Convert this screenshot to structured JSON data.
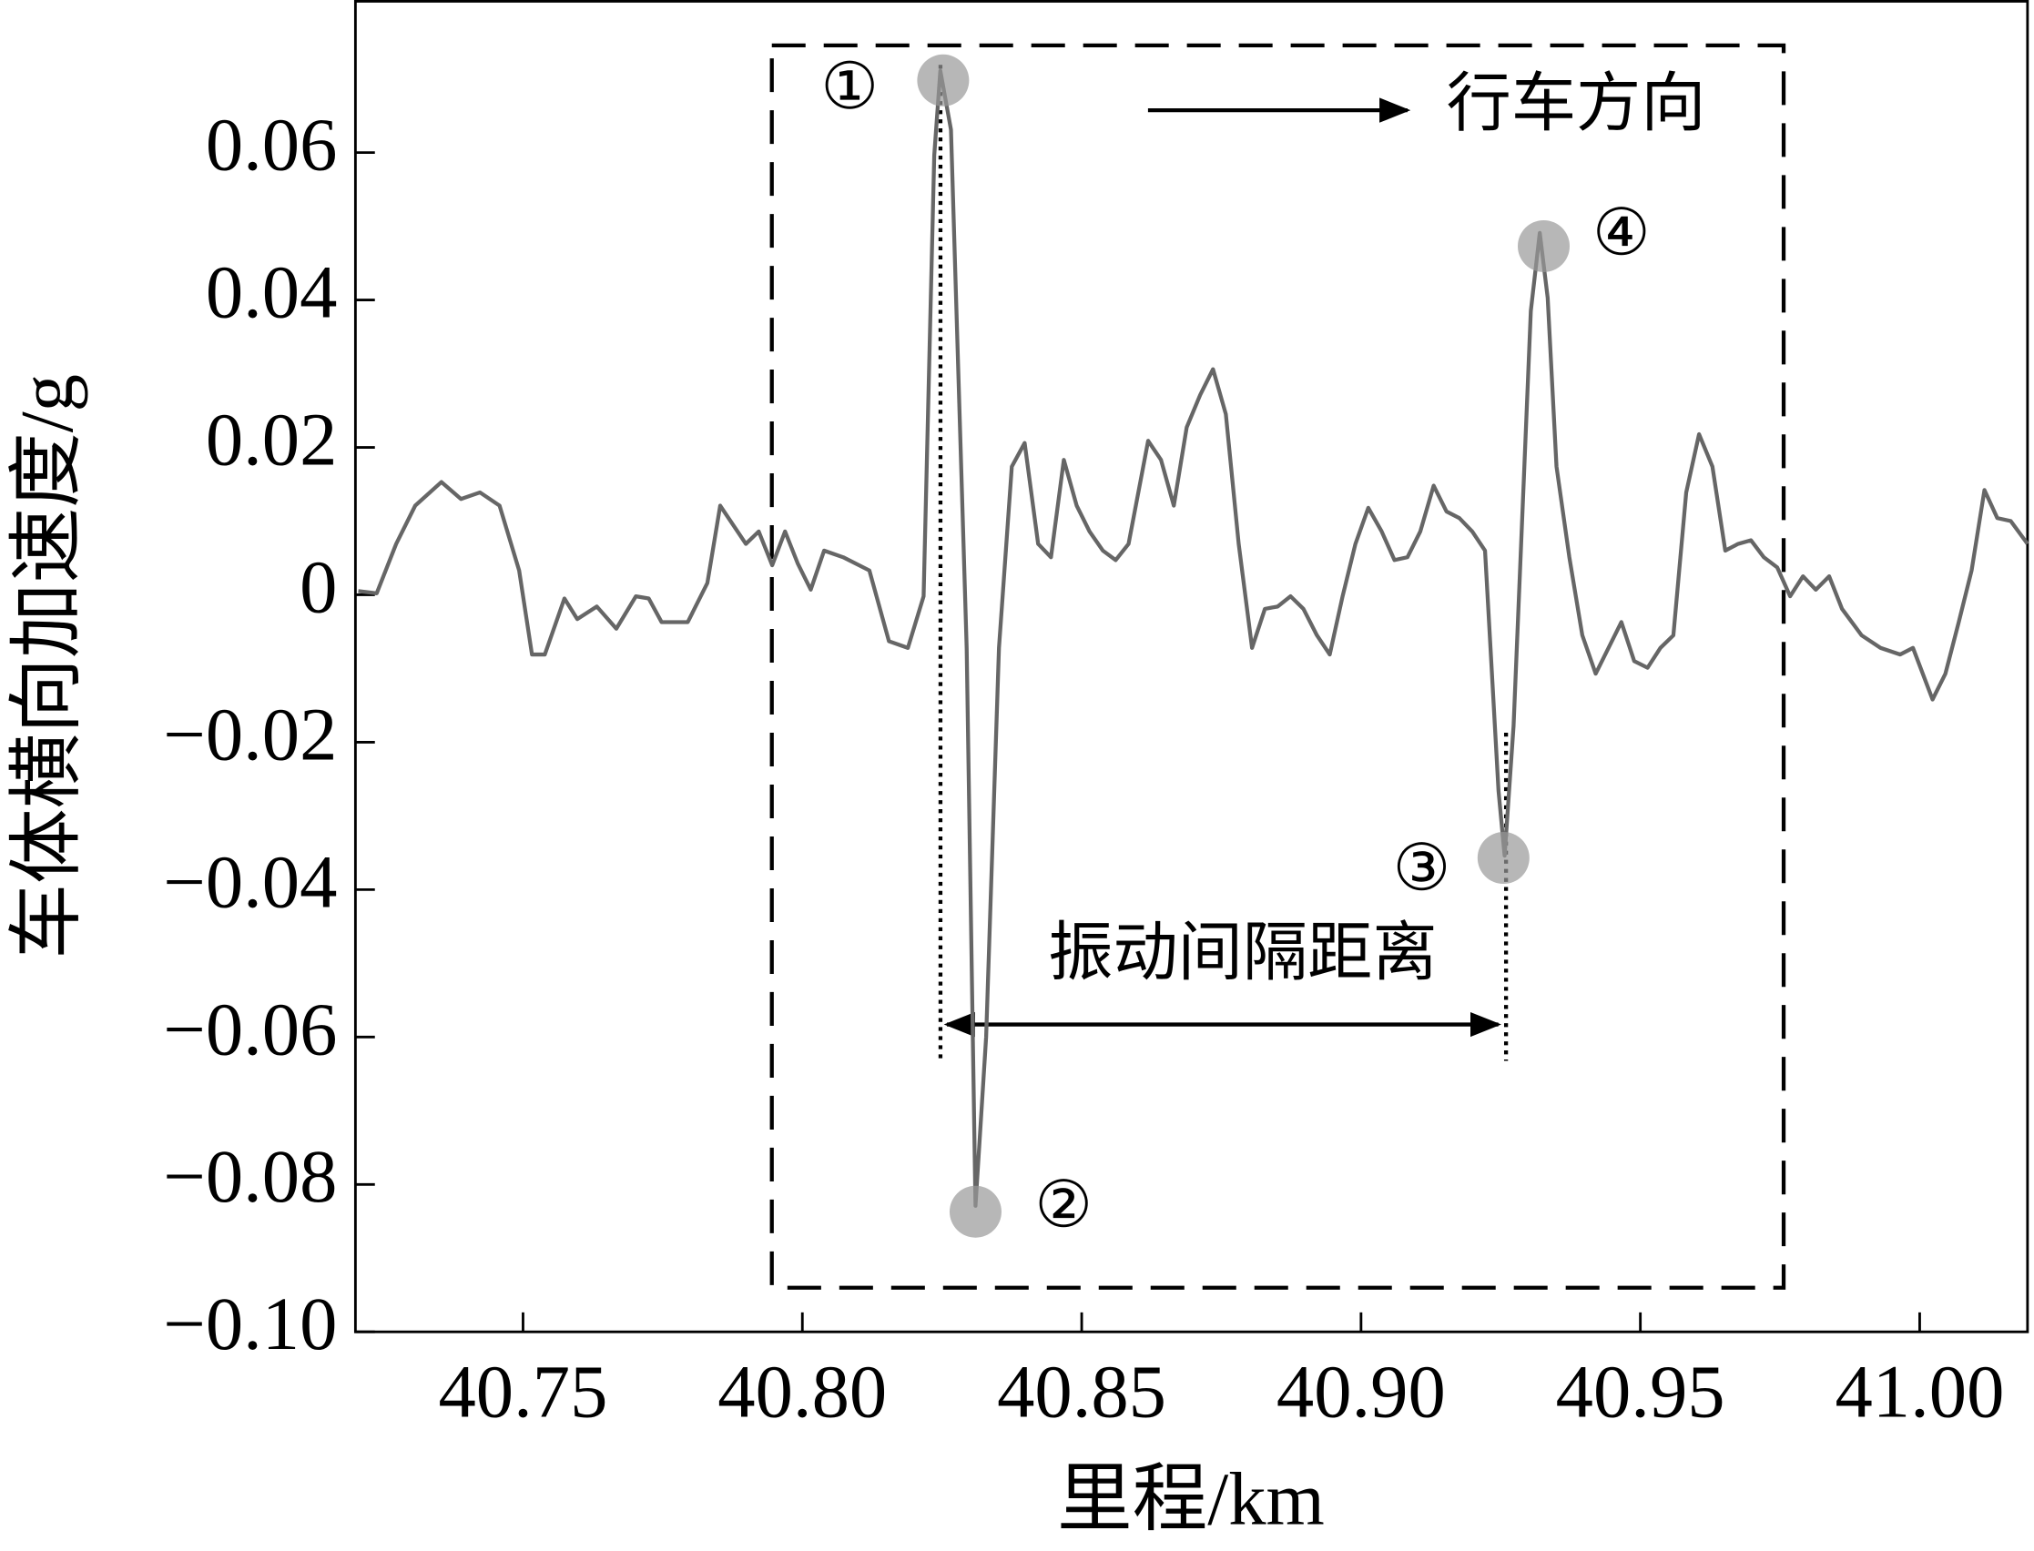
{
  "chart_data": {
    "type": "line",
    "xlabel": "里程/km",
    "ylabel": "车体横向加速度/g",
    "x": [
      40.7205,
      40.7238,
      40.7273,
      40.7307,
      40.7354,
      40.7389,
      40.7423,
      40.7458,
      40.7493,
      40.7516,
      40.7539,
      40.7574,
      40.7597,
      40.7632,
      40.7667,
      40.7702,
      40.7725,
      40.7748,
      40.7795,
      40.783,
      40.7853,
      40.7876,
      40.7899,
      40.7922,
      40.7946,
      40.7969,
      40.7992,
      40.8015,
      40.8039,
      40.8073,
      40.812,
      40.8155,
      40.8189,
      40.8217,
      40.8236,
      40.8247,
      40.8266,
      40.8294,
      40.831,
      40.8329,
      40.8352,
      40.8375,
      40.8398,
      40.8422,
      40.8445,
      40.8468,
      40.8491,
      40.8514,
      40.8538,
      40.8561,
      40.8584,
      40.8619,
      40.8642,
      40.8665,
      40.8688,
      40.8712,
      40.8735,
      40.8758,
      40.8781,
      40.8805,
      40.8828,
      40.8851,
      40.8874,
      40.8897,
      40.8921,
      40.8944,
      40.8967,
      40.899,
      40.9013,
      40.9037,
      40.906,
      40.9083,
      40.9106,
      40.913,
      40.9153,
      40.9176,
      40.9199,
      40.9222,
      40.9246,
      40.9257,
      40.9273,
      40.9304,
      40.932,
      40.9334,
      40.935,
      40.9373,
      40.9396,
      40.942,
      40.9443,
      40.9466,
      40.9489,
      40.9513,
      40.9536,
      40.9559,
      40.9582,
      40.9605,
      40.9629,
      40.9652,
      40.9675,
      40.9698,
      40.9721,
      40.9745,
      40.9768,
      40.9791,
      40.9814,
      40.9838,
      40.9861,
      40.9896,
      40.993,
      40.9965,
      40.9988,
      41.0023,
      41.0046,
      41.007,
      41.0093,
      41.0116,
      41.0139,
      41.0163,
      41.0193
    ],
    "values": [
      0.0005,
      0.0002,
      0.0069,
      0.0121,
      0.0153,
      0.013,
      0.0139,
      0.0121,
      0.0033,
      -0.0081,
      -0.0081,
      -0.0005,
      -0.0033,
      -0.0016,
      -0.0046,
      -0.0002,
      -0.0005,
      -0.0037,
      -0.0037,
      0.0016,
      0.0121,
      0.0095,
      0.0069,
      0.0086,
      0.004,
      0.0086,
      0.0042,
      0.0007,
      0.006,
      0.0051,
      0.0033,
      -0.0063,
      -0.0072,
      -0.0002,
      0.0596,
      0.0711,
      0.0631,
      -0.0072,
      -0.0829,
      -0.06,
      -0.0072,
      0.0174,
      0.0206,
      0.0069,
      0.0051,
      0.0183,
      0.0121,
      0.0086,
      0.006,
      0.0047,
      0.0069,
      0.0209,
      0.0183,
      0.0121,
      0.0227,
      0.0271,
      0.0306,
      0.0245,
      0.0069,
      -0.0072,
      -0.0019,
      -0.0016,
      -0.0002,
      -0.0019,
      -0.0055,
      -0.0081,
      -0.0002,
      0.0069,
      0.0118,
      0.0086,
      0.0047,
      0.0051,
      0.0086,
      0.0148,
      0.0113,
      0.0104,
      0.0086,
      0.006,
      -0.0266,
      -0.0354,
      -0.0178,
      0.0385,
      0.0491,
      0.0403,
      0.0174,
      0.0051,
      -0.0055,
      -0.0107,
      -0.0072,
      -0.0037,
      -0.009,
      -0.0099,
      -0.0072,
      -0.0055,
      0.0139,
      0.0218,
      0.0174,
      0.006,
      0.0069,
      0.0074,
      0.0051,
      0.0037,
      -0.0002,
      0.0025,
      0.0007,
      0.0025,
      -0.0019,
      -0.0055,
      -0.0072,
      -0.0081,
      -0.0072,
      -0.0142,
      -0.0107,
      -0.0037,
      0.0033,
      0.0142,
      0.0104,
      0.01,
      0.0069
    ],
    "color": "#666666",
    "xlim": [
      40.72,
      41.0193
    ],
    "ylim": [
      -0.1,
      0.0807
    ],
    "xticks": [
      40.75,
      {
        "value": 40.8,
        "label": "40.80"
      },
      40.85,
      {
        "value": 40.9,
        "label": "40.90"
      },
      40.95,
      {
        "value": 41.0,
        "label": "41.00"
      }
    ],
    "yticks": [
      {
        "value": -0.1,
        "label": "−0.10"
      },
      {
        "value": -0.08,
        "label": "−0.08"
      },
      {
        "value": -0.06,
        "label": "−0.06"
      },
      {
        "value": -0.04,
        "label": "−0.04"
      },
      {
        "value": -0.02,
        "label": "−0.02"
      },
      0,
      0.02,
      0.04,
      0.06
    ],
    "markers": [
      {
        "label": "①",
        "x": 40.8252,
        "y": 0.0698
      },
      {
        "label": "②",
        "x": 40.831,
        "y": -0.0837
      },
      {
        "label": "③",
        "x": 40.9255,
        "y": -0.0357
      },
      {
        "label": "④",
        "x": 40.9327,
        "y": 0.0473
      }
    ],
    "annotations": {
      "direction": "行车方向",
      "interval": "振动间隔距离"
    }
  }
}
